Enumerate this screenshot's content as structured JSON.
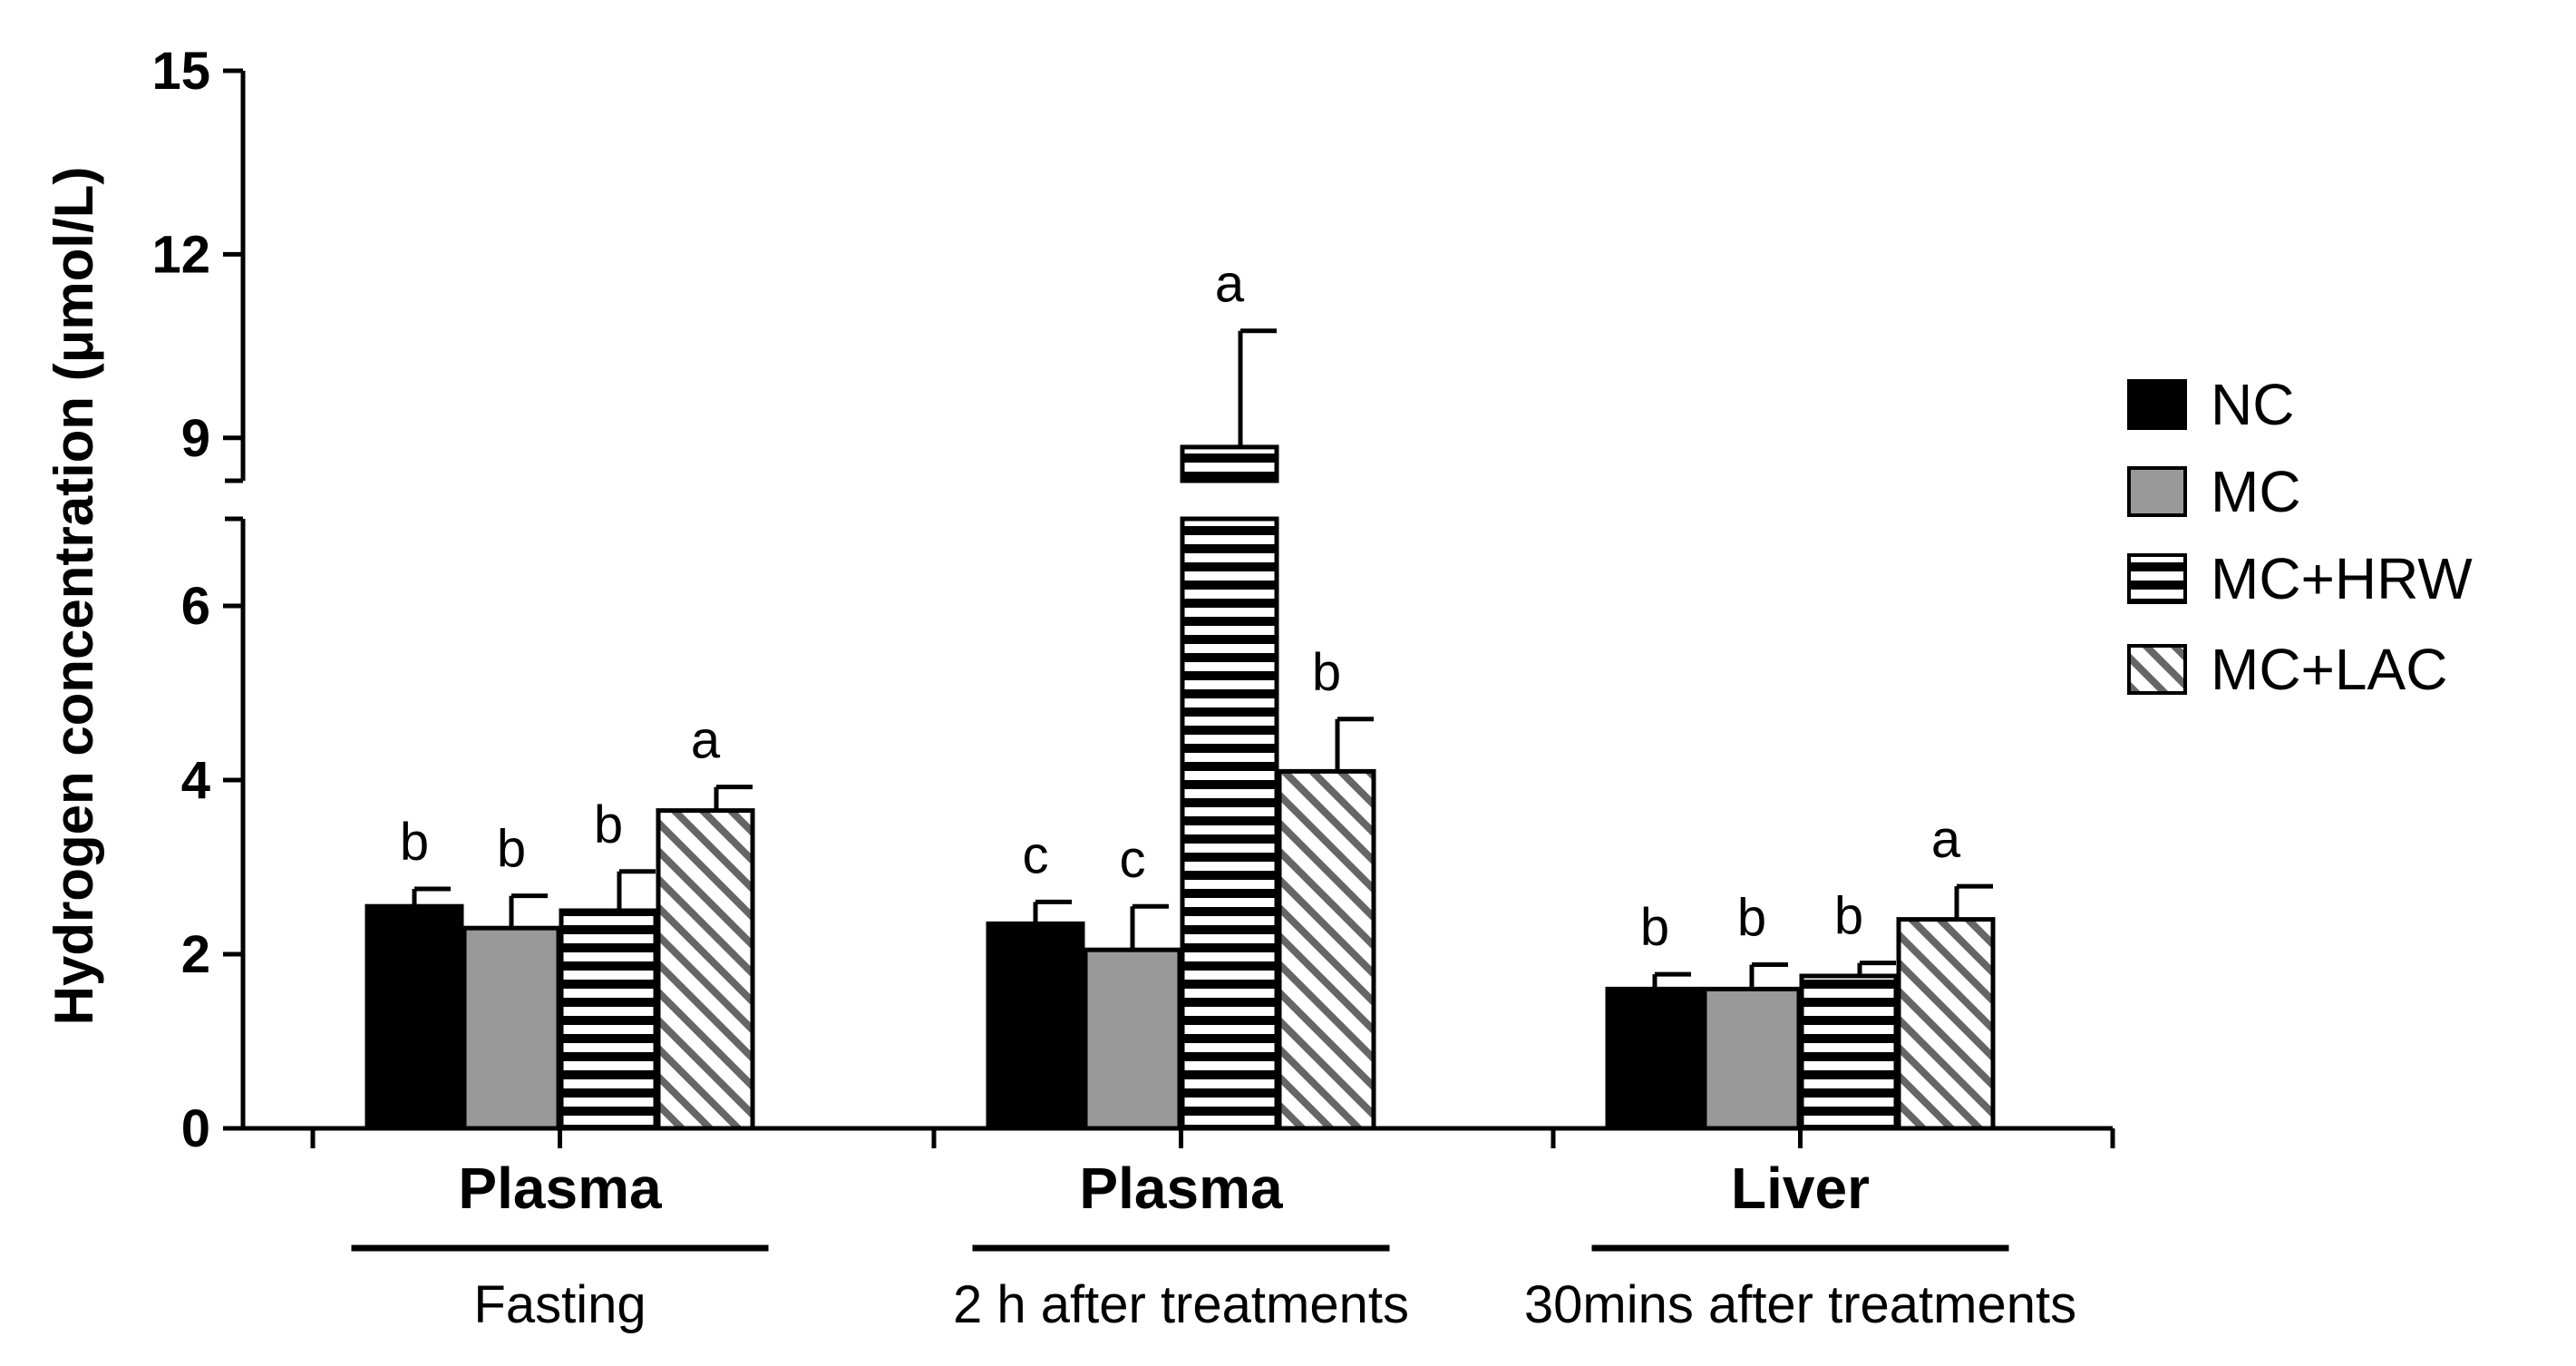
{
  "chart_data": {
    "type": "bar",
    "title": "",
    "xlabel": "",
    "ylabel": "Hydrogen concentration (μmol/L)",
    "ylim": [
      0,
      15
    ],
    "axis_break": {
      "lower_max": 7,
      "upper_min": 8.3
    },
    "yticks": [
      {
        "value": 0,
        "label": "0"
      },
      {
        "value": 2,
        "label": "2"
      },
      {
        "value": 4,
        "label": "4"
      },
      {
        "value": 6,
        "label": "6"
      },
      {
        "value": 9,
        "label": "9"
      },
      {
        "value": 12,
        "label": "12"
      },
      {
        "value": 15,
        "label": "15"
      }
    ],
    "groups": [
      {
        "label": "Plasma",
        "sublabel": "Fasting"
      },
      {
        "label": "Plasma",
        "sublabel": "2 h after treatments"
      },
      {
        "label": "Liver",
        "sublabel": "30mins after treatments"
      }
    ],
    "series": [
      {
        "name": "NC",
        "fill": "#000000",
        "pattern": "solid",
        "values": [
          2.55,
          2.35,
          1.6
        ],
        "errors": [
          0.2,
          0.25,
          0.17
        ],
        "letters": [
          "b",
          "c",
          "b"
        ]
      },
      {
        "name": "MC",
        "fill": "#999999",
        "pattern": "solid",
        "values": [
          2.3,
          2.05,
          1.6
        ],
        "errors": [
          0.37,
          0.5,
          0.28
        ],
        "letters": [
          "b",
          "c",
          "b"
        ]
      },
      {
        "name": "MC+HRW",
        "fill": "#ffffff",
        "pattern": "horizontal",
        "values": [
          2.5,
          8.85,
          1.75
        ],
        "errors": [
          0.45,
          1.9,
          0.15
        ],
        "letters": [
          "b",
          "a",
          "b"
        ]
      },
      {
        "name": "MC+LAC",
        "fill": "#ffffff",
        "pattern": "diagonal",
        "values": [
          3.65,
          4.1,
          2.4
        ],
        "errors": [
          0.27,
          0.6,
          0.38
        ],
        "letters": [
          "a",
          "b",
          "a"
        ]
      }
    ],
    "legend_position": "right"
  }
}
